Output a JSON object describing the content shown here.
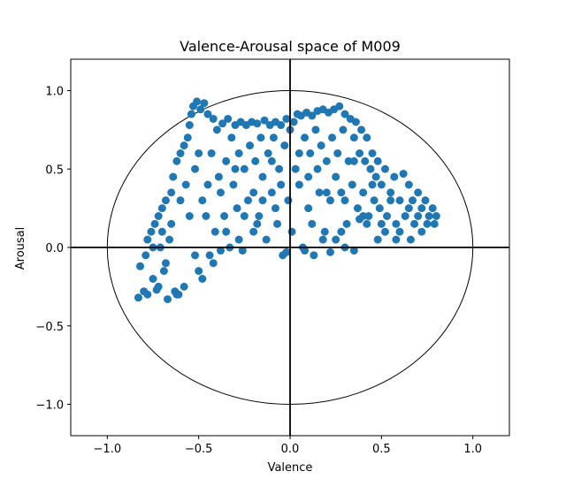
{
  "chart_data": {
    "type": "scatter",
    "title": "Valence-Arousal space of M009",
    "xlabel": "Valence",
    "ylabel": "Arousal",
    "xlim": [
      -1.2,
      1.2
    ],
    "ylim": [
      -1.2,
      1.2
    ],
    "xticks": [
      -1.0,
      -0.5,
      0.0,
      0.5,
      1.0
    ],
    "xtick_labels": [
      "−1.0",
      "−0.5",
      "0.0",
      "0.5",
      "1.0"
    ],
    "yticks": [
      -1.0,
      -0.5,
      0.0,
      0.5,
      1.0
    ],
    "ytick_labels": [
      "−1.0",
      "−0.5",
      "0.0",
      "0.5",
      "1.0"
    ],
    "grid": false,
    "legend": "none",
    "point_color": "#1f77b4",
    "reference": {
      "unit_circle_radius": 1.0,
      "axis_lines_at_zero": true
    },
    "series": [
      {
        "points": [
          [
            -0.83,
            -0.32
          ],
          [
            -0.82,
            -0.12
          ],
          [
            -0.8,
            -0.28
          ],
          [
            -0.79,
            -0.05
          ],
          [
            -0.78,
            0.05
          ],
          [
            -0.76,
            0.1
          ],
          [
            -0.75,
            -0.2
          ],
          [
            -0.74,
            0.15
          ],
          [
            -0.73,
            -0.27
          ],
          [
            -0.72,
            0.2
          ],
          [
            -0.71,
            0.0
          ],
          [
            -0.7,
            0.25
          ],
          [
            -0.69,
            -0.15
          ],
          [
            -0.68,
            0.3
          ],
          [
            -0.67,
            -0.33
          ],
          [
            -0.66,
            0.05
          ],
          [
            -0.65,
            0.35
          ],
          [
            -0.64,
            0.45
          ],
          [
            -0.63,
            -0.28
          ],
          [
            -0.62,
            0.55
          ],
          [
            -0.61,
            -0.3
          ],
          [
            -0.6,
            0.6
          ],
          [
            -0.58,
            0.65
          ],
          [
            -0.57,
            0.4
          ],
          [
            -0.56,
            0.7
          ],
          [
            -0.55,
            0.78
          ],
          [
            -0.54,
            0.85
          ],
          [
            -0.53,
            0.9
          ],
          [
            -0.52,
            0.5
          ],
          [
            -0.51,
            0.93
          ],
          [
            -0.5,
            -0.15
          ],
          [
            -0.49,
            0.88
          ],
          [
            -0.48,
            0.3
          ],
          [
            -0.47,
            0.92
          ],
          [
            -0.46,
            0.2
          ],
          [
            -0.45,
            0.85
          ],
          [
            -0.44,
            -0.05
          ],
          [
            -0.43,
            0.6
          ],
          [
            -0.42,
            0.82
          ],
          [
            -0.41,
            0.1
          ],
          [
            -0.4,
            0.75
          ],
          [
            -0.39,
            0.45
          ],
          [
            -0.38,
            0.35
          ],
          [
            -0.37,
            0.79
          ],
          [
            -0.36,
            0.2
          ],
          [
            -0.35,
            0.55
          ],
          [
            -0.34,
            0.82
          ],
          [
            -0.33,
            0.0
          ],
          [
            -0.32,
            0.7
          ],
          [
            -0.31,
            0.4
          ],
          [
            -0.3,
            0.78
          ],
          [
            -0.29,
            0.25
          ],
          [
            -0.28,
            0.6
          ],
          [
            -0.27,
            0.8
          ],
          [
            -0.26,
            -0.02
          ],
          [
            -0.25,
            0.5
          ],
          [
            -0.24,
            0.78
          ],
          [
            -0.23,
            0.3
          ],
          [
            -0.22,
            0.65
          ],
          [
            -0.21,
            0.8
          ],
          [
            -0.2,
            0.1
          ],
          [
            -0.19,
            0.55
          ],
          [
            -0.18,
            0.79
          ],
          [
            -0.17,
            0.2
          ],
          [
            -0.16,
            0.7
          ],
          [
            -0.15,
            0.45
          ],
          [
            -0.14,
            0.81
          ],
          [
            -0.13,
            0.05
          ],
          [
            -0.12,
            0.6
          ],
          [
            -0.11,
            0.78
          ],
          [
            -0.1,
            0.35
          ],
          [
            -0.09,
            0.7
          ],
          [
            -0.08,
            0.8
          ],
          [
            -0.07,
            0.15
          ],
          [
            -0.06,
            0.5
          ],
          [
            -0.05,
            0.78
          ],
          [
            -0.04,
            -0.05
          ],
          [
            -0.03,
            0.65
          ],
          [
            -0.02,
            0.82
          ],
          [
            -0.01,
            0.3
          ],
          [
            0.0,
            0.75
          ],
          [
            0.01,
            0.1
          ],
          [
            0.02,
            0.8
          ],
          [
            0.03,
            0.5
          ],
          [
            0.04,
            0.85
          ],
          [
            0.05,
            0.4
          ],
          [
            0.06,
            0.84
          ],
          [
            0.07,
            0.0
          ],
          [
            0.08,
            0.7
          ],
          [
            0.09,
            0.86
          ],
          [
            0.1,
            0.25
          ],
          [
            0.11,
            0.6
          ],
          [
            0.12,
            0.84
          ],
          [
            0.13,
            -0.05
          ],
          [
            0.14,
            0.75
          ],
          [
            0.15,
            0.87
          ],
          [
            0.16,
            0.35
          ],
          [
            0.17,
            0.65
          ],
          [
            0.18,
            0.88
          ],
          [
            0.19,
            0.1
          ],
          [
            0.2,
            0.55
          ],
          [
            0.21,
            0.86
          ],
          [
            0.22,
            0.3
          ],
          [
            0.23,
            0.7
          ],
          [
            0.24,
            0.88
          ],
          [
            0.25,
            0.05
          ],
          [
            0.26,
            0.6
          ],
          [
            0.27,
            0.9
          ],
          [
            0.28,
            0.35
          ],
          [
            0.29,
            0.75
          ],
          [
            0.3,
            0.85
          ],
          [
            0.31,
            0.15
          ],
          [
            0.32,
            0.55
          ],
          [
            0.33,
            0.82
          ],
          [
            0.34,
            0.4
          ],
          [
            0.35,
            0.7
          ],
          [
            0.36,
            0.8
          ],
          [
            0.37,
            0.25
          ],
          [
            0.38,
            0.6
          ],
          [
            0.39,
            0.75
          ],
          [
            0.4,
            0.35
          ],
          [
            0.41,
            0.55
          ],
          [
            0.42,
            0.7
          ],
          [
            0.43,
            0.2
          ],
          [
            0.44,
            0.5
          ],
          [
            0.45,
            0.6
          ],
          [
            0.46,
            0.3
          ],
          [
            0.47,
            0.45
          ],
          [
            0.48,
            0.55
          ],
          [
            0.49,
            0.25
          ],
          [
            0.5,
            0.4
          ],
          [
            0.52,
            0.5
          ],
          [
            0.53,
            0.2
          ],
          [
            0.55,
            0.35
          ],
          [
            0.57,
            0.45
          ],
          [
            0.58,
            0.15
          ],
          [
            0.6,
            0.3
          ],
          [
            0.62,
            0.47
          ],
          [
            0.63,
            0.2
          ],
          [
            0.65,
            0.4
          ],
          [
            0.67,
            0.3
          ],
          [
            0.68,
            0.15
          ],
          [
            0.7,
            0.35
          ],
          [
            0.72,
            0.25
          ],
          [
            0.74,
            0.3
          ],
          [
            0.76,
            0.2
          ],
          [
            0.78,
            0.25
          ],
          [
            0.79,
            0.15
          ],
          [
            -0.5,
            0.6
          ],
          [
            -0.45,
            0.4
          ],
          [
            -0.3,
            0.5
          ],
          [
            -0.2,
            0.35
          ],
          [
            -0.1,
            0.55
          ],
          [
            0.05,
            0.6
          ],
          [
            0.15,
            0.5
          ],
          [
            0.25,
            0.45
          ],
          [
            0.35,
            0.55
          ],
          [
            0.45,
            0.4
          ],
          [
            0.55,
            0.3
          ],
          [
            0.65,
            0.25
          ],
          [
            -0.6,
            0.3
          ],
          [
            -0.55,
            0.2
          ],
          [
            -0.65,
            0.15
          ],
          [
            -0.7,
            0.1
          ],
          [
            -0.75,
            0.0
          ],
          [
            -0.68,
            -0.1
          ],
          [
            -0.72,
            -0.25
          ],
          [
            -0.78,
            -0.3
          ],
          [
            -0.62,
            -0.3
          ],
          [
            -0.48,
            -0.2
          ],
          [
            -0.42,
            -0.1
          ],
          [
            -0.35,
            0.1
          ],
          [
            -0.25,
            0.2
          ],
          [
            -0.15,
            0.3
          ],
          [
            -0.05,
            0.4
          ],
          [
            0.1,
            0.45
          ],
          [
            0.2,
            0.35
          ],
          [
            0.3,
            0.3
          ],
          [
            0.4,
            0.2
          ],
          [
            0.5,
            0.15
          ],
          [
            0.6,
            0.1
          ],
          [
            0.7,
            0.2
          ],
          [
            0.75,
            0.15
          ],
          [
            -0.58,
            -0.25
          ],
          [
            -0.52,
            -0.05
          ],
          [
            0.38,
            0.18
          ],
          [
            0.42,
            0.15
          ],
          [
            0.22,
            -0.03
          ],
          [
            0.08,
            -0.02
          ],
          [
            -0.02,
            -0.03
          ],
          [
            0.18,
            0.05
          ],
          [
            0.12,
            0.15
          ],
          [
            -0.08,
            0.25
          ],
          [
            -0.18,
            0.15
          ],
          [
            -0.28,
            0.05
          ],
          [
            -0.38,
            -0.02
          ],
          [
            0.3,
            0.0
          ],
          [
            0.35,
            -0.02
          ],
          [
            0.28,
            0.1
          ],
          [
            0.48,
            0.05
          ],
          [
            0.52,
            0.1
          ],
          [
            0.58,
            0.05
          ],
          [
            0.66,
            0.05
          ],
          [
            0.72,
            0.1
          ],
          [
            0.8,
            0.2
          ]
        ]
      }
    ]
  }
}
